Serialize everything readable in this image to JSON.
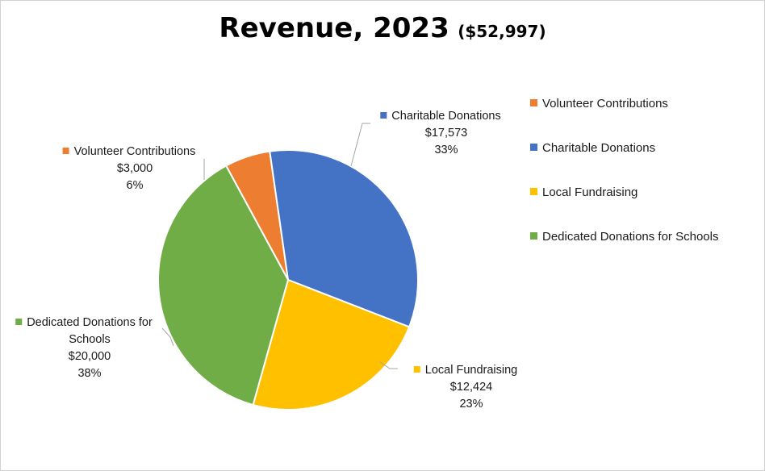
{
  "chart_data": {
    "type": "pie",
    "title": "Revenue, 2023",
    "subtitle": "($52,997)",
    "slices": [
      {
        "name": "Volunteer Contributions",
        "value": 3000,
        "value_label": "$3,000",
        "percent_label": "6%",
        "color": "#ED7D31"
      },
      {
        "name": "Charitable Donations",
        "value": 17573,
        "value_label": "$17,573",
        "percent_label": "33%",
        "color": "#4472C4"
      },
      {
        "name": "Local Fundraising",
        "value": 12424,
        "value_label": "$12,424",
        "percent_label": "23%",
        "color": "#FFC000"
      },
      {
        "name": "Dedicated Donations for Schools",
        "value": 20000,
        "value_label": "$20,000",
        "percent_label": "38%",
        "color": "#70AD47"
      }
    ],
    "legend_position": "right"
  }
}
